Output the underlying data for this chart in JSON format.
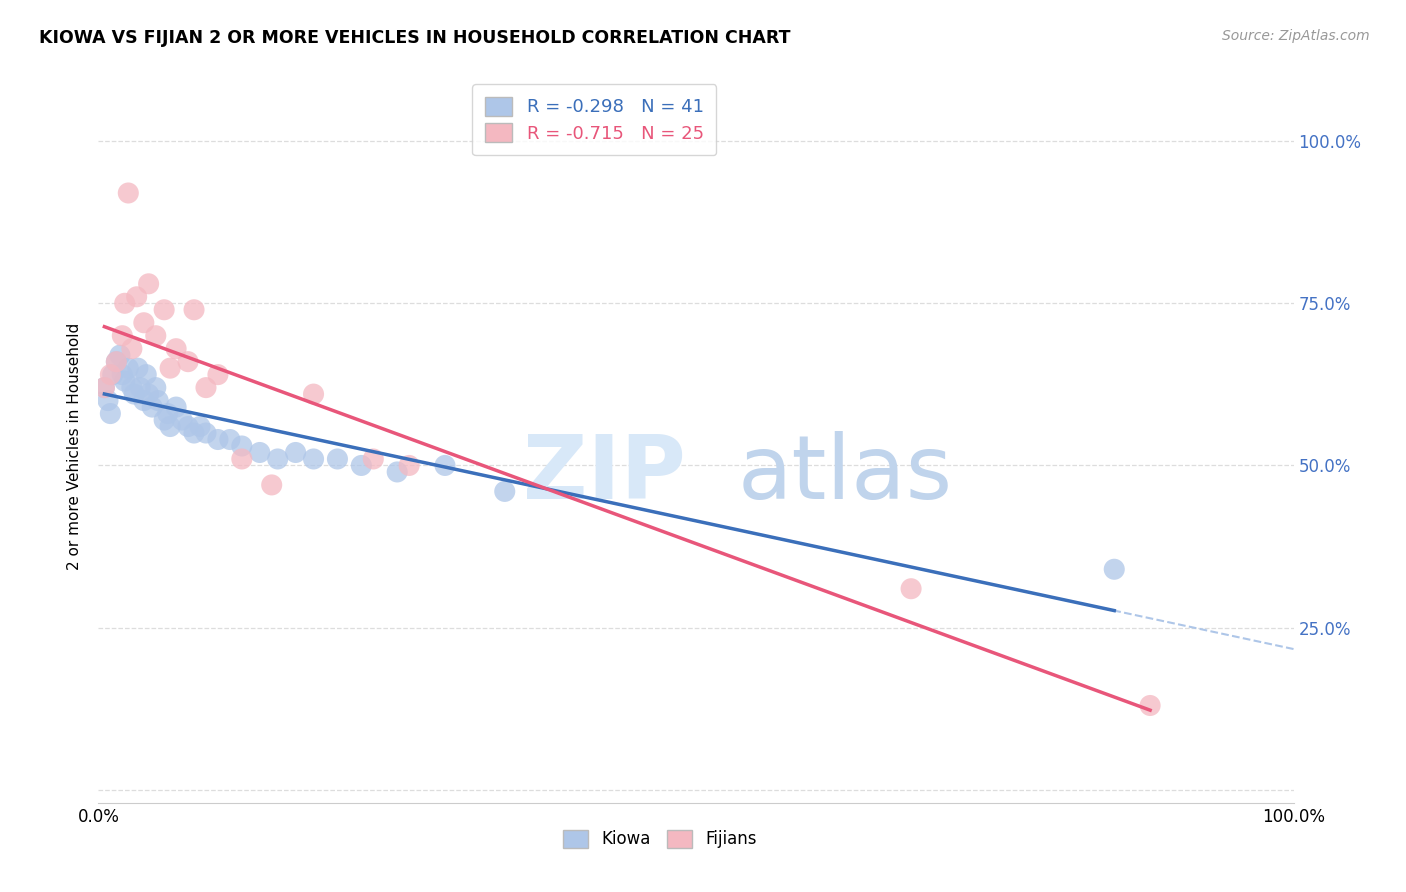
{
  "title": "KIOWA VS FIJIAN 2 OR MORE VEHICLES IN HOUSEHOLD CORRELATION CHART",
  "source": "Source: ZipAtlas.com",
  "ylabel": "2 or more Vehicles in Household",
  "xlim": [
    0.0,
    1.0
  ],
  "ylim": [
    -0.02,
    1.08
  ],
  "kiowa_R": -0.298,
  "kiowa_N": 41,
  "fijian_R": -0.715,
  "fijian_N": 25,
  "kiowa_color": "#aec6e8",
  "fijian_color": "#f4b8c1",
  "kiowa_line_color": "#3b6fba",
  "fijian_line_color": "#e8567a",
  "dashed_line_color": "#aec6e8",
  "watermark_color": "#d8e8f8",
  "background_color": "#ffffff",
  "grid_color": "#dddddd",
  "right_tick_color": "#4472C4",
  "kiowa_x": [
    0.005,
    0.008,
    0.01,
    0.012,
    0.015,
    0.018,
    0.02,
    0.022,
    0.025,
    0.028,
    0.03,
    0.033,
    0.035,
    0.038,
    0.04,
    0.042,
    0.045,
    0.048,
    0.05,
    0.055,
    0.058,
    0.06,
    0.065,
    0.07,
    0.075,
    0.08,
    0.085,
    0.09,
    0.1,
    0.11,
    0.12,
    0.135,
    0.15,
    0.165,
    0.18,
    0.2,
    0.22,
    0.25,
    0.29,
    0.34,
    0.85
  ],
  "kiowa_y": [
    0.62,
    0.6,
    0.58,
    0.64,
    0.66,
    0.67,
    0.64,
    0.63,
    0.65,
    0.62,
    0.61,
    0.65,
    0.62,
    0.6,
    0.64,
    0.61,
    0.59,
    0.62,
    0.6,
    0.57,
    0.58,
    0.56,
    0.59,
    0.57,
    0.56,
    0.55,
    0.56,
    0.55,
    0.54,
    0.54,
    0.53,
    0.52,
    0.51,
    0.52,
    0.51,
    0.51,
    0.5,
    0.49,
    0.5,
    0.46,
    0.34
  ],
  "fijian_x": [
    0.005,
    0.01,
    0.015,
    0.02,
    0.022,
    0.025,
    0.028,
    0.032,
    0.038,
    0.042,
    0.048,
    0.055,
    0.06,
    0.065,
    0.075,
    0.08,
    0.09,
    0.1,
    0.12,
    0.145,
    0.18,
    0.23,
    0.26,
    0.68,
    0.88
  ],
  "fijian_y": [
    0.62,
    0.64,
    0.66,
    0.7,
    0.75,
    0.92,
    0.68,
    0.76,
    0.72,
    0.78,
    0.7,
    0.74,
    0.65,
    0.68,
    0.66,
    0.74,
    0.62,
    0.64,
    0.51,
    0.47,
    0.61,
    0.51,
    0.5,
    0.31,
    0.13
  ]
}
